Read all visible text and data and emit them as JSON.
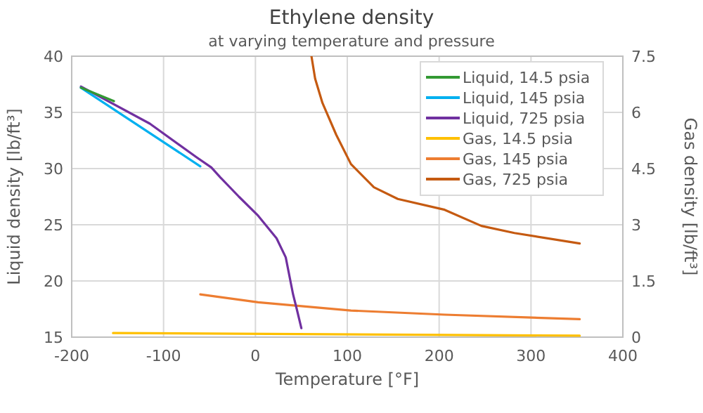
{
  "chart_data": {
    "type": "line",
    "title": "Ethylene density",
    "subtitle": "at varying temperature and pressure",
    "xlabel": "Temperature [°F]",
    "ylabel": "Liquid density [lb/ft³]",
    "y2label": "Gas density [lb/ft³]",
    "xlim": [
      -200,
      400
    ],
    "xticks": [
      -200,
      -100,
      0,
      100,
      200,
      300,
      400
    ],
    "ylim": [
      15,
      40
    ],
    "yticks": [
      15,
      20,
      25,
      30,
      35,
      40
    ],
    "y2lim": [
      0,
      7.5
    ],
    "y2ticks": [
      0,
      1.5,
      3,
      4.5,
      6,
      7.5
    ],
    "grid": true,
    "legend": "top right",
    "marker": "none",
    "line_style": "solid",
    "series": [
      {
        "name": "Liquid, 14.5 psia",
        "color": "#339933",
        "x": [
          -190,
          -154
        ],
        "values": [
          37.2,
          36.0
        ]
      },
      {
        "name": "Liquid, 145 psia",
        "color": "#00b0f0",
        "x": [
          -190,
          -60
        ],
        "values": [
          37.2,
          30.2
        ]
      },
      {
        "name": "Liquid, 725 psia",
        "color": "#7030a0",
        "x": [
          -190,
          -115,
          -64,
          -48,
          -38,
          -18,
          3,
          23,
          33,
          41,
          45,
          50
        ],
        "values": [
          37.3,
          34.0,
          31.0,
          30.1,
          29.2,
          27.5,
          25.8,
          23.8,
          22.1,
          18.8,
          17.5,
          15.8
        ]
      },
      {
        "name": "Gas, 14.5 psia",
        "color": "#ffc000",
        "axis": "y2",
        "x": [
          -155,
          353
        ],
        "values": [
          0.11,
          0.04
        ]
      },
      {
        "name": "Gas, 145 psia",
        "color": "#ed7d31",
        "axis": "y2",
        "x": [
          -60,
          3,
          104,
          206,
          353
        ],
        "values": [
          1.14,
          0.93,
          0.71,
          0.6,
          0.48
        ]
      },
      {
        "name": "Gas, 725 psia",
        "color": "#c55a11",
        "axis": "y2",
        "x": [
          61,
          65,
          73,
          88,
          104,
          129,
          155,
          206,
          246,
          282,
          353
        ],
        "values": [
          7.5,
          6.9,
          6.25,
          5.4,
          4.62,
          4.0,
          3.69,
          3.4,
          2.97,
          2.78,
          2.5
        ]
      }
    ]
  }
}
